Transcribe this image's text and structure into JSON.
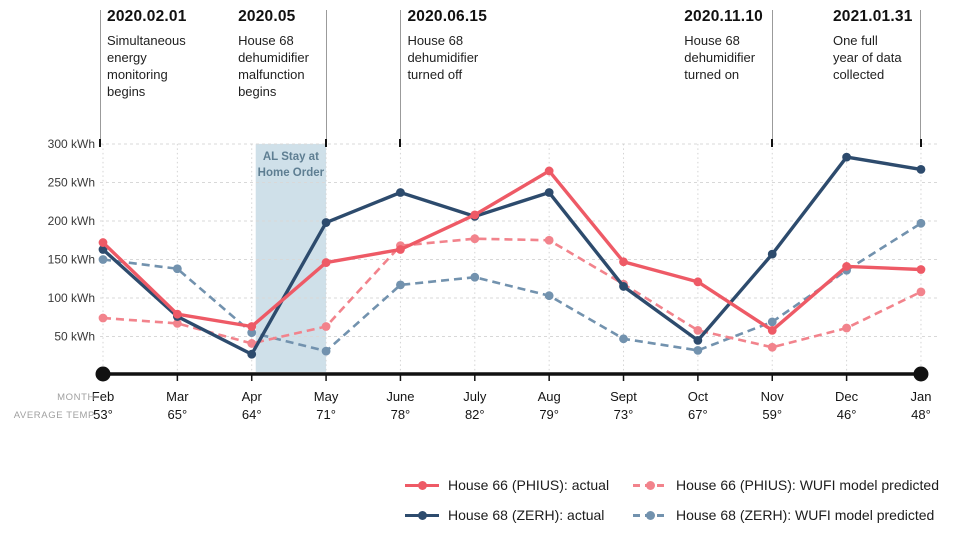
{
  "title_annotations": [
    {
      "date": "2020.02.01",
      "text": "Simultaneous\nenergy\nmonitoring\nbegins",
      "line_month_index": 0,
      "text_side": "right"
    },
    {
      "date": "2020.05",
      "text": "House 68\ndehumidifier\nmalfunction\nbegins",
      "line_month_index": 3,
      "text_side": "left"
    },
    {
      "date": "2020.06.15",
      "text": "House 68\ndehumidifier\nturned off",
      "line_month_index": 4,
      "text_side": "right"
    },
    {
      "date": "2020.11.10",
      "text": "House 68\ndehumidifier\nturned on",
      "line_month_index": 9,
      "text_side": "left"
    },
    {
      "date": "2021.01.31",
      "text": "One full\nyear of data\ncollected",
      "line_month_index": 11,
      "text_side": "left"
    }
  ],
  "axis_row_labels": {
    "month": "MONTH",
    "avg_temp": "AVERAGE TEMP"
  },
  "colors": {
    "house66_actual": "#ee5a66",
    "house66_predicted": "#f2838c",
    "house68_actual": "#2d4b6d",
    "house68_predicted": "#7292ae",
    "band_fill": "#cfe0e9",
    "band_text": "#5e7e92",
    "gridline": "#d8d8d8",
    "axis": "#111111"
  },
  "chart_data": {
    "type": "line",
    "title": "",
    "xlabel": "MONTH",
    "ylabel": "kWh",
    "ylim": [
      0,
      300
    ],
    "ytick_step": 50,
    "ytick_labels": [
      "50 kWh",
      "100 kWh",
      "150 kWh",
      "200 kWh",
      "250 kWh",
      "300 kWh"
    ],
    "grid": true,
    "legend_position": "bottom",
    "categories": [
      "Feb",
      "Mar",
      "Apr",
      "May",
      "June",
      "July",
      "Aug",
      "Sept",
      "Oct",
      "Nov",
      "Dec",
      "Jan"
    ],
    "avg_temps": [
      "53°",
      "65°",
      "64°",
      "71°",
      "78°",
      "82°",
      "79°",
      "73°",
      "67°",
      "59°",
      "46°",
      "48°"
    ],
    "band": {
      "label": "AL Stay at\nHome Order",
      "start_month_index": 2,
      "end_month_index": 3
    },
    "series": [
      {
        "name": "House 66 (PHIUS): actual",
        "style": "solid",
        "color": "#ee5a66",
        "values": [
          172,
          79,
          63,
          146,
          163,
          208,
          265,
          147,
          121,
          58,
          141,
          137
        ]
      },
      {
        "name": "House 68 (ZERH): actual",
        "style": "solid",
        "color": "#2d4b6d",
        "values": [
          163,
          76,
          27,
          198,
          237,
          206,
          237,
          115,
          45,
          157,
          283,
          267
        ]
      },
      {
        "name": "House 66 (PHIUS): WUFI model predicted",
        "style": "dashed",
        "color": "#f2838c",
        "values": [
          74,
          67,
          41,
          63,
          168,
          177,
          175,
          118,
          58,
          36,
          61,
          108
        ]
      },
      {
        "name": "House 68 (ZERH): WUFI model predicted",
        "style": "dashed",
        "color": "#7292ae",
        "values": [
          150,
          138,
          55,
          31,
          117,
          127,
          103,
          47,
          32,
          69,
          136,
          197
        ]
      }
    ]
  }
}
